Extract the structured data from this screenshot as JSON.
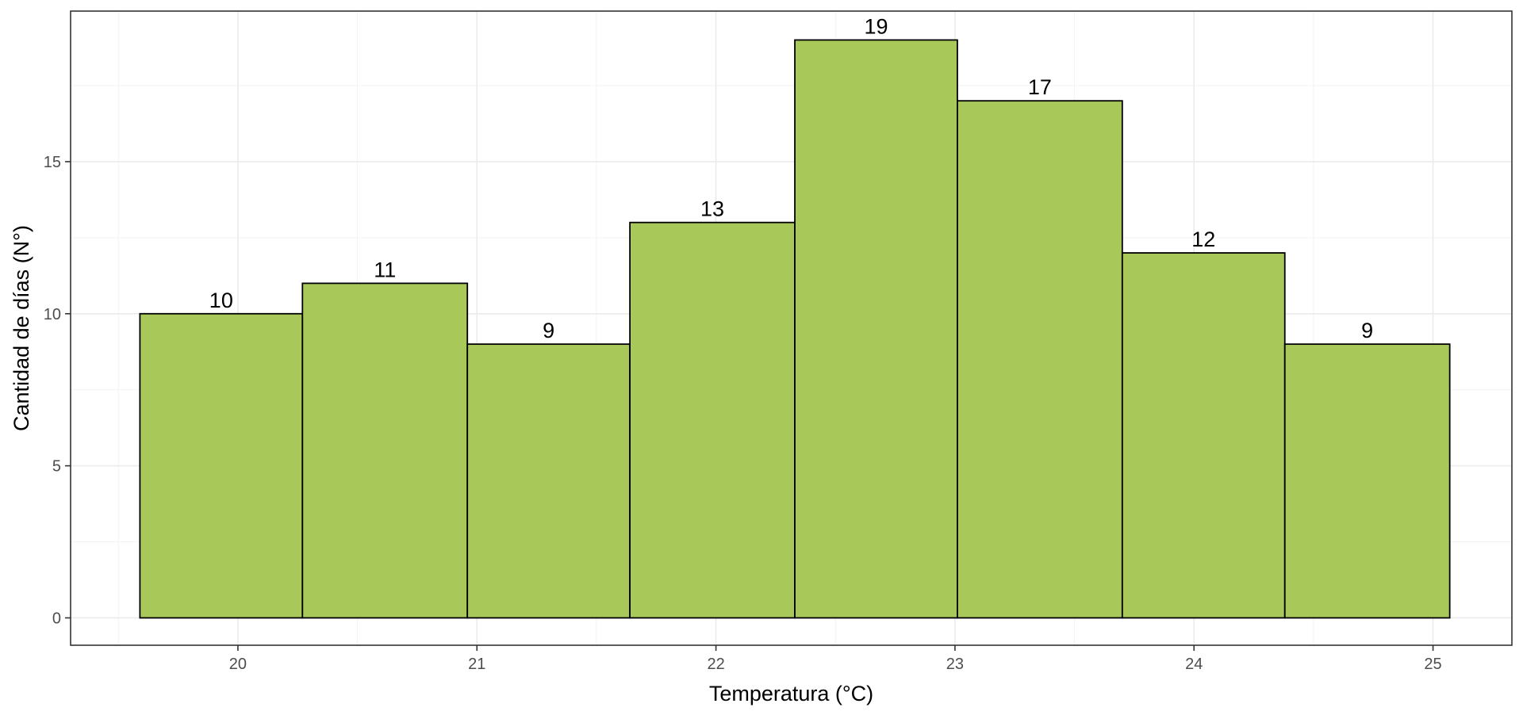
{
  "chart_data": {
    "type": "bar",
    "subtype": "histogram",
    "bins": [
      {
        "x_start": 19.59,
        "x_end": 20.27,
        "value": 10
      },
      {
        "x_start": 20.27,
        "x_end": 20.96,
        "value": 11
      },
      {
        "x_start": 20.96,
        "x_end": 21.64,
        "value": 9
      },
      {
        "x_start": 21.64,
        "x_end": 22.33,
        "value": 13
      },
      {
        "x_start": 22.33,
        "x_end": 23.01,
        "value": 19
      },
      {
        "x_start": 23.01,
        "x_end": 23.7,
        "value": 17
      },
      {
        "x_start": 23.7,
        "x_end": 24.38,
        "value": 12
      },
      {
        "x_start": 24.38,
        "x_end": 25.07,
        "value": 9
      }
    ],
    "data_labels": [
      "10",
      "11",
      "9",
      "13",
      "19",
      "17",
      "12",
      "9"
    ],
    "xlabel": "Temperatura (°C)",
    "ylabel": "Cantidad de días (N°)",
    "x_ticks": [
      20,
      21,
      22,
      23,
      24,
      25
    ],
    "y_ticks": [
      0,
      5,
      10,
      15
    ],
    "xlim": [
      19.3,
      25.33
    ],
    "ylim": [
      -0.9,
      19.95
    ],
    "grid": true,
    "legend": "none",
    "colors": {
      "bar_fill": "#a8c95a",
      "bar_stroke": "#000000",
      "panel_border": "#333333",
      "grid": "#ebebeb"
    }
  }
}
